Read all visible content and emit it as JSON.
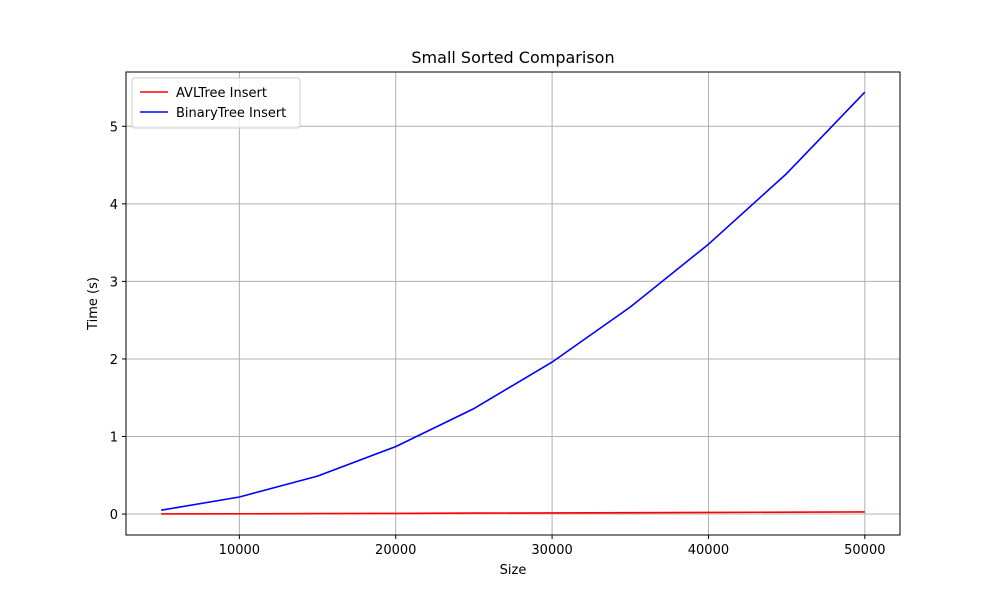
{
  "chart_data": {
    "type": "line",
    "title": "Small Sorted Comparison",
    "xlabel": "Size",
    "ylabel": "Time (s)",
    "x": [
      5000,
      10000,
      15000,
      20000,
      25000,
      30000,
      35000,
      40000,
      45000,
      50000
    ],
    "xlim": [
      2750,
      52250
    ],
    "ylim": [
      -0.27,
      5.7
    ],
    "xticks": [
      10000,
      20000,
      30000,
      40000,
      50000
    ],
    "yticks": [
      0,
      1,
      2,
      3,
      4,
      5
    ],
    "grid": true,
    "legend_position": "top-left",
    "series": [
      {
        "name": "AVLTree Insert",
        "color": "#ff0000",
        "values": [
          0.002,
          0.004,
          0.006,
          0.009,
          0.012,
          0.015,
          0.018,
          0.021,
          0.024,
          0.028
        ]
      },
      {
        "name": "BinaryTree Insert",
        "color": "#0000ff",
        "values": [
          0.05,
          0.22,
          0.49,
          0.87,
          1.36,
          1.96,
          2.67,
          3.48,
          4.39,
          5.44
        ]
      }
    ]
  }
}
